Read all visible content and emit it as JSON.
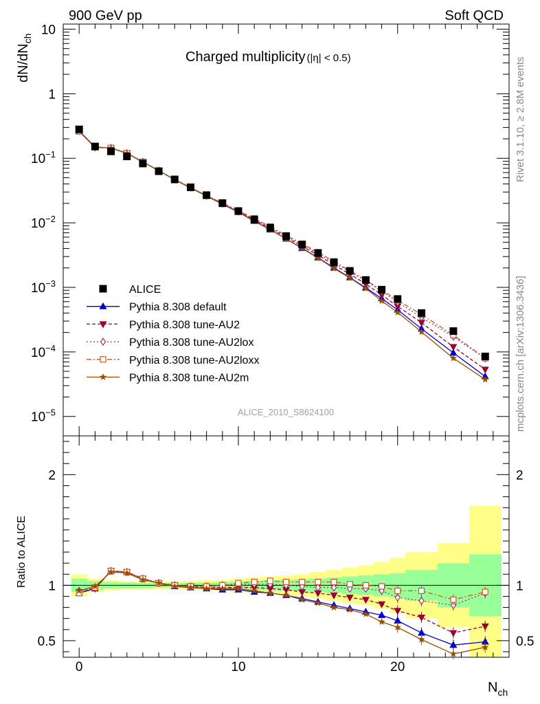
{
  "header": {
    "left_label": "900 GeV pp",
    "right_label": "Soft QCD"
  },
  "side_labels": {
    "rivet": "Rivet 3.1.10, ≥ 2.8M events",
    "mcplots": "mcplots.cern.ch [arXiv:1306.3436]"
  },
  "chart_data": {
    "type": "line",
    "title": "Charged multiplicity",
    "title_suffix": "(|η| < 0.5)",
    "analysis_id": "ALICE_2010_S8624100",
    "xlabel": "N",
    "xlabel_sub": "ch",
    "ylabel": "dN/dN",
    "ylabel_sub": "ch",
    "ratio_ylabel": "Ratio to ALICE",
    "xlim": [
      -1,
      27
    ],
    "ylim": [
      5e-06,
      12
    ],
    "ratio_ylim": [
      0.35,
      2.35
    ],
    "x_ticks": [
      0,
      10,
      20
    ],
    "y_ticks": [
      {
        "value": 10,
        "label": "10"
      },
      {
        "value": 1,
        "label": "1"
      },
      {
        "value": 0.1,
        "base": "10",
        "exp": "−1"
      },
      {
        "value": 0.01,
        "base": "10",
        "exp": "−2"
      },
      {
        "value": 0.001,
        "base": "10",
        "exp": "−3"
      },
      {
        "value": 0.0001,
        "base": "10",
        "exp": "−4"
      },
      {
        "value": 1e-05,
        "base": "10",
        "exp": "−5"
      }
    ],
    "ratio_ticks": [
      {
        "value": 0.5,
        "label": "0.5"
      },
      {
        "value": 1,
        "label": "1"
      },
      {
        "value": 2,
        "label": "2"
      }
    ],
    "x": [
      0,
      1,
      2,
      3,
      4,
      5,
      6,
      7,
      8,
      9,
      10,
      11,
      12,
      13,
      14,
      15,
      16,
      17,
      18,
      19,
      20,
      21.5,
      23.5,
      25.5
    ],
    "data_series": {
      "name": "ALICE",
      "values": [
        0.28,
        0.152,
        0.128,
        0.107,
        0.083,
        0.063,
        0.047,
        0.0355,
        0.0268,
        0.0202,
        0.0152,
        0.0113,
        0.0084,
        0.0062,
        0.0046,
        0.0034,
        0.00245,
        0.0018,
        0.0013,
        0.00092,
        0.00066,
        0.0004,
        0.00021,
        8.5e-05
      ]
    },
    "ratio_bands": {
      "x_edges": [
        -0.5,
        0.5,
        1.5,
        2.5,
        3.5,
        4.5,
        5.5,
        6.5,
        7.5,
        8.5,
        9.5,
        10.5,
        11.5,
        12.5,
        13.5,
        14.5,
        15.5,
        16.5,
        17.5,
        18.5,
        19.5,
        20.5,
        22.5,
        24.5,
        26.5
      ],
      "inner_halfwidth": [
        0.06,
        0.04,
        0.03,
        0.025,
        0.022,
        0.02,
        0.02,
        0.022,
        0.025,
        0.03,
        0.035,
        0.04,
        0.045,
        0.05,
        0.055,
        0.06,
        0.07,
        0.08,
        0.09,
        0.1,
        0.11,
        0.14,
        0.2,
        0.28
      ],
      "outer_halfwidth": [
        0.1,
        0.06,
        0.045,
        0.04,
        0.035,
        0.035,
        0.035,
        0.04,
        0.045,
        0.05,
        0.06,
        0.07,
        0.08,
        0.09,
        0.1,
        0.12,
        0.14,
        0.16,
        0.18,
        0.21,
        0.25,
        0.3,
        0.38,
        0.72
      ]
    },
    "series": [
      {
        "name": "Pythia 8.308 default",
        "color": "#0000cc",
        "dash": "",
        "marker": "triangle-up",
        "ratio": [
          0.93,
          0.97,
          1.13,
          1.12,
          1.06,
          1.02,
          0.99,
          0.98,
          0.97,
          0.96,
          0.96,
          0.94,
          0.93,
          0.91,
          0.88,
          0.85,
          0.82,
          0.79,
          0.76,
          0.73,
          0.68,
          0.57,
          0.46,
          0.49
        ]
      },
      {
        "name": "Pythia 8.308 tune-AU2",
        "color": "#990033",
        "dash": "5,3",
        "marker": "triangle-down",
        "ratio": [
          0.94,
          0.97,
          1.13,
          1.12,
          1.06,
          1.02,
          1.0,
          0.99,
          0.98,
          0.98,
          0.98,
          0.98,
          0.97,
          0.96,
          0.94,
          0.93,
          0.91,
          0.89,
          0.87,
          0.83,
          0.77,
          0.71,
          0.57,
          0.63
        ]
      },
      {
        "name": "Pythia 8.308 tune-AU2lox",
        "color": "#993366",
        "dash": "2,3",
        "marker": "diamond",
        "ratio": [
          0.95,
          0.98,
          1.13,
          1.12,
          1.06,
          1.02,
          1.0,
          0.99,
          0.99,
          1.0,
          1.01,
          1.01,
          1.01,
          1.0,
          0.99,
          0.98,
          0.98,
          0.97,
          0.97,
          0.95,
          0.89,
          0.86,
          0.82,
          0.93
        ]
      },
      {
        "name": "Pythia 8.308 tune-AU2loxx",
        "color": "#cc5522",
        "dash": "7,3,2,3",
        "marker": "square-open",
        "ratio": [
          0.93,
          0.98,
          1.13,
          1.12,
          1.06,
          1.02,
          1.0,
          0.99,
          0.99,
          1.0,
          1.02,
          1.03,
          1.04,
          1.03,
          1.03,
          1.03,
          1.03,
          1.01,
          1.0,
          0.99,
          0.95,
          0.95,
          0.87,
          0.94
        ]
      },
      {
        "name": "Pythia 8.308 tune-AU2m",
        "color": "#994d00",
        "dash": "",
        "marker": "star",
        "ratio": [
          0.95,
          0.99,
          1.12,
          1.11,
          1.05,
          1.02,
          0.99,
          0.98,
          0.97,
          0.97,
          0.97,
          0.95,
          0.93,
          0.91,
          0.87,
          0.84,
          0.8,
          0.78,
          0.74,
          0.67,
          0.62,
          0.51,
          0.38,
          0.44
        ]
      }
    ]
  }
}
